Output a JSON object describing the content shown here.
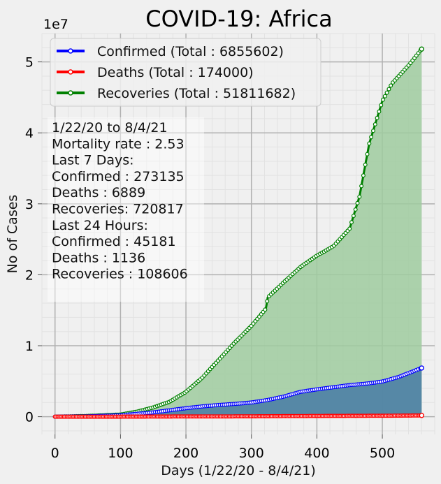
{
  "chart_data": {
    "type": "area",
    "title": "COVID-19: Africa",
    "xlabel": "Days (1/22/20 - 8/4/21)",
    "ylabel": "No of Cases",
    "y_offset_text": "1e7",
    "xlim": [
      -20,
      580
    ],
    "ylim": [
      -2.5,
      54
    ],
    "x_ticks": [
      0,
      100,
      200,
      300,
      400,
      500
    ],
    "y_ticks": [
      0,
      1,
      2,
      3,
      4,
      5
    ],
    "y_tick_labels": [
      "0",
      "1",
      "2",
      "3",
      "4",
      "5"
    ],
    "grid": true,
    "legend_position": "top-left",
    "series": [
      {
        "name": "Confirmed (Total : 6855602)",
        "color": "#0000ff",
        "fill": "#4d7fa5",
        "x": [
          0,
          50,
          100,
          125,
          150,
          175,
          200,
          225,
          250,
          275,
          300,
          325,
          350,
          375,
          400,
          425,
          450,
          475,
          500,
          525,
          560
        ],
        "y": [
          0,
          0.05,
          0.2,
          0.4,
          0.6,
          0.9,
          1.2,
          1.45,
          1.65,
          1.8,
          2.0,
          2.35,
          2.85,
          3.5,
          3.85,
          4.15,
          4.45,
          4.65,
          4.95,
          5.6,
          6.86
        ]
      },
      {
        "name": "Deaths (Total : 174000)",
        "color": "#ff0000",
        "fill": "#c26060",
        "x": [
          0,
          100,
          200,
          300,
          400,
          500,
          560
        ],
        "y": [
          0,
          0.005,
          0.03,
          0.05,
          0.1,
          0.13,
          0.174
        ]
      },
      {
        "name": "Recoveries (Total : 51811682)",
        "color": "#008000",
        "fill": "#9fcb9f",
        "x": [
          0,
          50,
          100,
          125,
          150,
          175,
          200,
          225,
          250,
          275,
          300,
          322,
          325,
          350,
          375,
          400,
          425,
          450,
          465,
          480,
          500,
          515,
          540,
          560
        ],
        "y": [
          0,
          0.1,
          0.3,
          0.7,
          1.3,
          2.1,
          3.5,
          5.5,
          8.0,
          10.5,
          12.8,
          15.2,
          16.8,
          19.0,
          21.1,
          22.7,
          24.0,
          26.5,
          31.0,
          38.5,
          44.5,
          47.0,
          49.5,
          51.81
        ]
      }
    ],
    "annotation_lines": [
      "1/22/20 to 8/4/21",
      "Mortality rate : 2.53",
      "Last 7 Days:",
      "Confirmed : 273135",
      "Deaths : 6889",
      "Recoveries: 720817",
      "Last 24 Hours:",
      "Confirmed : 45181",
      "Deaths : 1136",
      "Recoveries : 108606"
    ]
  }
}
